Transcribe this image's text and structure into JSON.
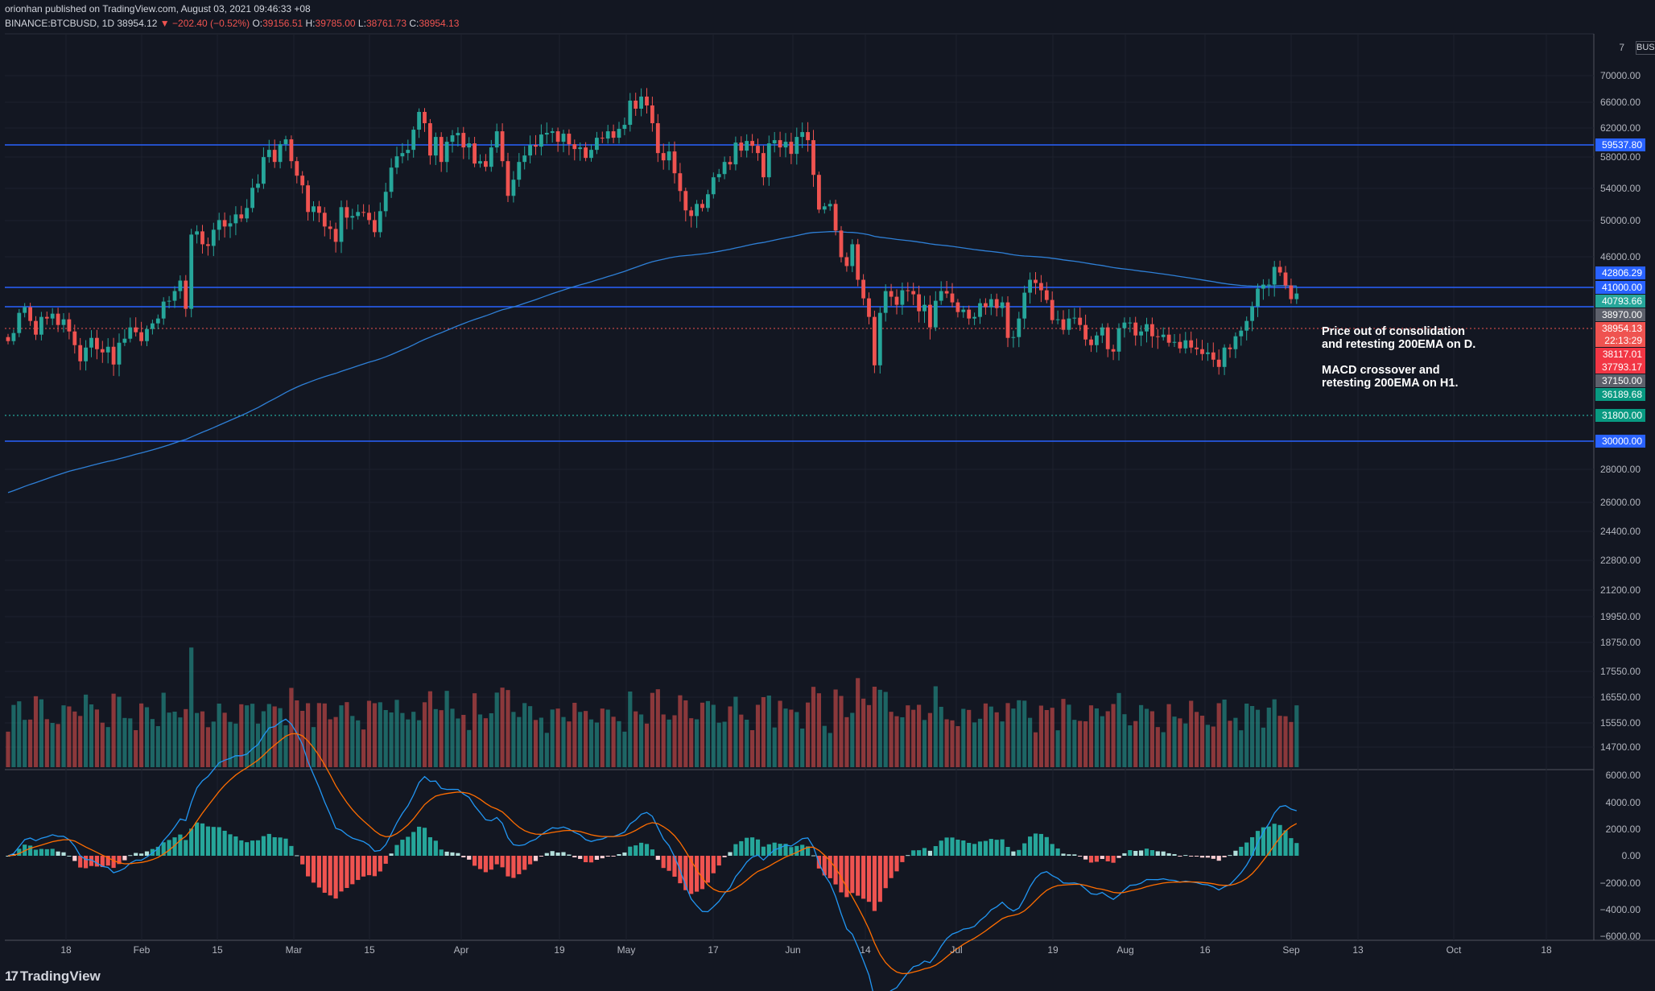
{
  "header": {
    "published": "orionhan published on TradingView.com, August 03, 2021 09:46:33 +08",
    "symbol": "BINANCE:BTCBUSD, 1D",
    "price": "38954.12",
    "change_arrow": "▼",
    "change": "−202.40 (−0.52%)",
    "o_label": "O:",
    "o": "39156.51",
    "h_label": "H:",
    "h": "39785.00",
    "l_label": "L:",
    "l": "38761.73",
    "c_label": "C:",
    "c": "38954.13"
  },
  "currency": "BUSD",
  "footer": {
    "logo": "17",
    "brand": "TradingView"
  },
  "annotation": {
    "lines": [
      "Price out of consolidation",
      "and retesting 200EMA on D.",
      "",
      "MACD crossover and",
      "retesting 200EMA on H1."
    ]
  },
  "colors": {
    "background": "#131722",
    "up": "#26a69a",
    "down": "#ef5350",
    "hline": "#2962ff",
    "ema": "#2e7fd6",
    "macd": "#2196f3",
    "signal": "#ff6d00"
  },
  "chart_data": {
    "type": "candlestick",
    "y_axis_labels": [
      "70000.00",
      "66000.00",
      "62000.00",
      "58000.00",
      "54000.00",
      "50000.00",
      "46000.00",
      "28000.00",
      "26000.00",
      "24400.00",
      "22800.00",
      "21200.00",
      "19950.00",
      "18750.00",
      "17550.00",
      "16550.00",
      "15550.00",
      "14700.00"
    ],
    "y_axis_top_partial": "7",
    "price_tags": [
      {
        "label": "59537.80",
        "color": "#2962ff"
      },
      {
        "label": "42806.29",
        "color": "#2962ff"
      },
      {
        "label": "41000.00",
        "color": "#2962ff"
      },
      {
        "label": "40793.66",
        "color": "#26a69a"
      },
      {
        "label": "38970.00",
        "color": "#5d606b"
      },
      {
        "label": "38954.13",
        "color": "#ef5350"
      },
      {
        "label": "22:13:29",
        "color": "#ef5350"
      },
      {
        "label": "38117.01",
        "color": "#f23645"
      },
      {
        "label": "37793.17",
        "color": "#f23645"
      },
      {
        "label": "37150.00",
        "color": "#5d606b"
      },
      {
        "label": "36189.68",
        "color": "#089981"
      },
      {
        "label": "31800.00",
        "color": "#089981"
      },
      {
        "label": "30000.00",
        "color": "#2962ff"
      }
    ],
    "macd_axis_labels": [
      "6000.00",
      "4000.00",
      "2000.00",
      "0.00",
      "−2000.00",
      "−4000.00",
      "−6000.00"
    ],
    "x_axis_labels": [
      "18",
      "Feb",
      "15",
      "Mar",
      "15",
      "Apr",
      "19",
      "May",
      "17",
      "Jun",
      "14",
      "Jul",
      "19",
      "Aug",
      "16",
      "Sep",
      "13",
      "Oct",
      "18"
    ],
    "horizontal_levels": [
      59537.8,
      41000,
      38970,
      30000
    ],
    "dotted_levels": [
      31800
    ],
    "red_dotted_level": 38954.13,
    "candles_close": [
      33000,
      34000,
      36500,
      37200,
      35500,
      33800,
      36000,
      35800,
      36400,
      35000,
      35700,
      34200,
      32500,
      30500,
      32200,
      33400,
      32000,
      31600,
      32300,
      30100,
      32800,
      33300,
      34700,
      34100,
      33000,
      34500,
      35200,
      35800,
      37900,
      38000,
      39200,
      40500,
      37000,
      46200,
      46600,
      45000,
      44800,
      46800,
      48000,
      47200,
      47600,
      48700,
      48200,
      49500,
      52000,
      52500,
      55800,
      56700,
      55200,
      57400,
      58000,
      55300,
      53500,
      52300,
      49000,
      49700,
      48900,
      47200,
      46900,
      45300,
      49600,
      48300,
      48500,
      49000,
      48900,
      48000,
      46500,
      49100,
      51500,
      54500,
      55900,
      56300,
      56700,
      59200,
      61400,
      60000,
      56000,
      58300,
      55200,
      57700,
      58500,
      58800,
      57000,
      57500,
      55000,
      55300,
      54600,
      57000,
      59000,
      55300,
      51000,
      53000,
      55200,
      56000,
      57300,
      57100,
      58600,
      58800,
      59000,
      57700,
      58700,
      57400,
      56800,
      57000,
      55700,
      56700,
      58200,
      58100,
      59000,
      58200,
      59300,
      59800,
      62800,
      61800,
      63300,
      62200,
      60000,
      56300,
      55400,
      56500,
      53800,
      51600,
      49200,
      48500,
      50000,
      49500,
      51200,
      53300,
      53700,
      55200,
      54900,
      57600,
      56600,
      57800,
      57200,
      56300,
      53300,
      57500,
      57900,
      57000,
      57700,
      56200,
      58300,
      58900,
      57900,
      53600,
      49300,
      49700,
      50000,
      46700,
      43400,
      42300,
      45000,
      40600,
      38300,
      36000,
      30000,
      36500,
      39200,
      38500,
      37500,
      39300,
      39200,
      38800,
      36700,
      37500,
      34700,
      38000,
      39200,
      38900,
      37800,
      36600,
      36900,
      35800,
      36000,
      37700,
      37200,
      38200,
      37100,
      37800,
      33400,
      33500,
      35800,
      39000,
      40600,
      40200,
      39300,
      38100,
      35600,
      35700,
      34400,
      35800,
      35900,
      35000,
      33200,
      32500,
      33700,
      34700,
      32000,
      31700,
      34600,
      35300,
      35300,
      33700,
      34200,
      35100,
      33600,
      33500,
      33800,
      32800,
      32900,
      32100,
      33100,
      32200,
      32000,
      31400,
      31600,
      30700,
      29800,
      32200,
      32000,
      33600,
      34300,
      35500,
      37300,
      39500,
      40000,
      40000,
      42200,
      41500,
      39900,
      38200,
      38900
    ]
  }
}
